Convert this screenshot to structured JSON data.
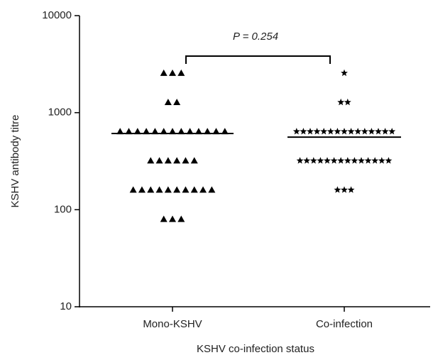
{
  "chart_data": {
    "type": "strip",
    "x_label": "KSHV co-infection status",
    "y_label": "KSHV antibody titre",
    "annotation": "P = 0.254",
    "categories": [
      "Mono-KSHV",
      "Co-infection"
    ],
    "groups": [
      {
        "marker": "triangle",
        "color": "#000000",
        "center_line": 610,
        "values": [
          2560,
          2560,
          2560,
          1280,
          1280,
          640,
          640,
          640,
          640,
          640,
          640,
          640,
          640,
          640,
          640,
          640,
          640,
          640,
          320,
          320,
          320,
          320,
          320,
          320,
          160,
          160,
          160,
          160,
          160,
          160,
          160,
          160,
          160,
          160,
          80,
          80,
          80
        ]
      },
      {
        "marker": "star",
        "color": "#000000",
        "center_line": 560,
        "values": [
          2560,
          1280,
          1280,
          640,
          640,
          640,
          640,
          640,
          640,
          640,
          640,
          640,
          640,
          640,
          640,
          640,
          640,
          640,
          320,
          320,
          320,
          320,
          320,
          320,
          320,
          320,
          320,
          320,
          320,
          320,
          320,
          320,
          160,
          160,
          160
        ]
      }
    ],
    "log_scale": true,
    "ylim": [
      10,
      10000
    ],
    "yticks": [
      10,
      100,
      1000,
      10000
    ]
  }
}
